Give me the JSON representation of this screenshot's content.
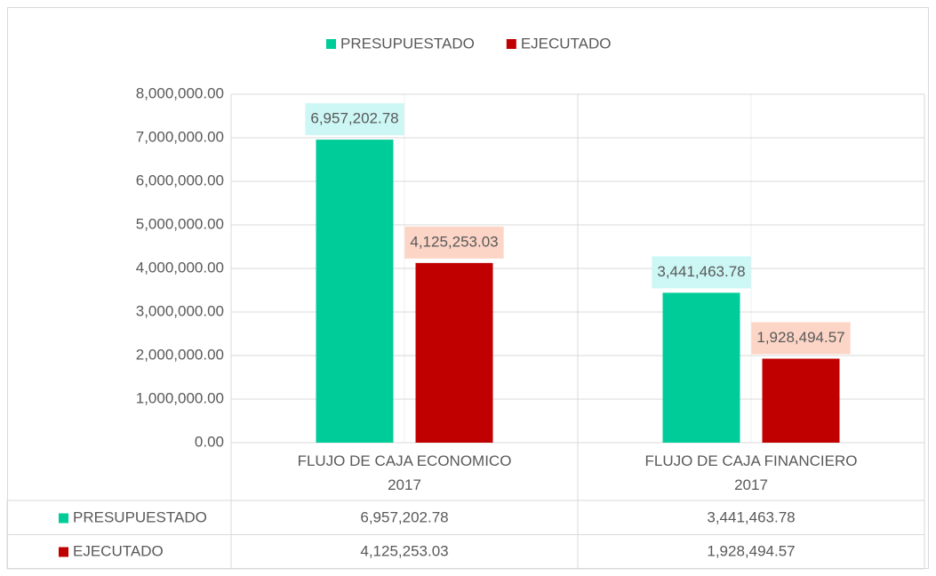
{
  "chart_data": {
    "type": "bar",
    "categories": [
      "FLUJO DE CAJA ECONOMICO 2017",
      "FLUJO DE CAJA FINANCIERO 2017"
    ],
    "series": [
      {
        "name": "PRESUPUESTADO",
        "color": "#00cc99",
        "label_background": "#ccf7f5",
        "values": [
          6957202.78,
          3441463.78
        ],
        "value_labels": [
          "6,957,202.78",
          "3,441,463.78"
        ]
      },
      {
        "name": "EJECUTADO",
        "color": "#c00000",
        "label_background": "#fcd5c6",
        "values": [
          4125253.03,
          1928494.57
        ],
        "value_labels": [
          "4,125,253.03",
          "1,928,494.57"
        ]
      }
    ],
    "ylim": [
      0,
      8000000
    ],
    "yticks": [
      {
        "value": 0,
        "label": "0.00"
      },
      {
        "value": 1000000,
        "label": "1,000,000.00"
      },
      {
        "value": 2000000,
        "label": "2,000,000.00"
      },
      {
        "value": 3000000,
        "label": "3,000,000.00"
      },
      {
        "value": 4000000,
        "label": "4,000,000.00"
      },
      {
        "value": 5000000,
        "label": "5,000,000.00"
      },
      {
        "value": 6000000,
        "label": "6,000,000.00"
      },
      {
        "value": 7000000,
        "label": "7,000,000.00"
      },
      {
        "value": 8000000,
        "label": "8,000,000.00"
      }
    ],
    "grid": true,
    "legend": "top",
    "data_table": true
  }
}
